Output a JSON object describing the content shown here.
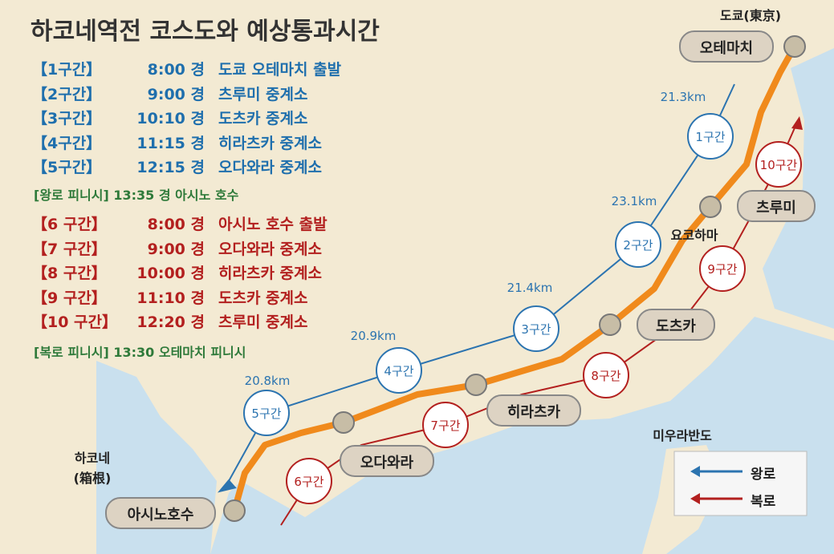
{
  "title": "하코네역전 코스도와 예상통과시간",
  "outbound": {
    "rows": [
      [
        "【1구간】",
        "8:00 경",
        "도쿄 오테마치 출발"
      ],
      [
        "【2구간】",
        "9:00 경",
        "츠루미 중계소"
      ],
      [
        "【3구간】",
        "10:10 경",
        "도츠카 중계소"
      ],
      [
        "【4구간】",
        "11:15 경",
        "히라츠카 중계소"
      ],
      [
        "【5구간】",
        "12:15 경",
        "오다와라 중계소"
      ]
    ],
    "finish": "[왕로 피니시] 13:35 경 아시노 호수"
  },
  "return": {
    "rows": [
      [
        "【6 구간】",
        "8:00 경",
        "아시노 호수 출발"
      ],
      [
        "【7 구간】",
        "9:00 경",
        "오다와라 중계소"
      ],
      [
        "【8 구간】",
        "10:00 경",
        "히라츠카 중계소"
      ],
      [
        "【9 구간】",
        "11:10 경",
        "도츠카 중계소"
      ],
      [
        "【10 구간】",
        "12:20 경",
        "츠루미 중계소"
      ]
    ],
    "finish": "[복로 피니시] 13:30 오테마치 피니시"
  },
  "stations": [
    "오테마치",
    "츠루미",
    "도츠카",
    "히라츠카",
    "오다와라",
    "아시노호수"
  ],
  "places": [
    "도쿄(東京)",
    "요코하마",
    "미우라반도",
    "하코네",
    "(箱根)"
  ],
  "sections": [
    "1구간",
    "2구간",
    "3구간",
    "4구간",
    "5구간",
    "6구간",
    "7구간",
    "8구간",
    "9구간",
    "10구간"
  ],
  "distances": [
    "21.3km",
    "23.1km",
    "21.4km",
    "20.9km",
    "20.8km"
  ],
  "legend": [
    "왕로",
    "복로"
  ]
}
